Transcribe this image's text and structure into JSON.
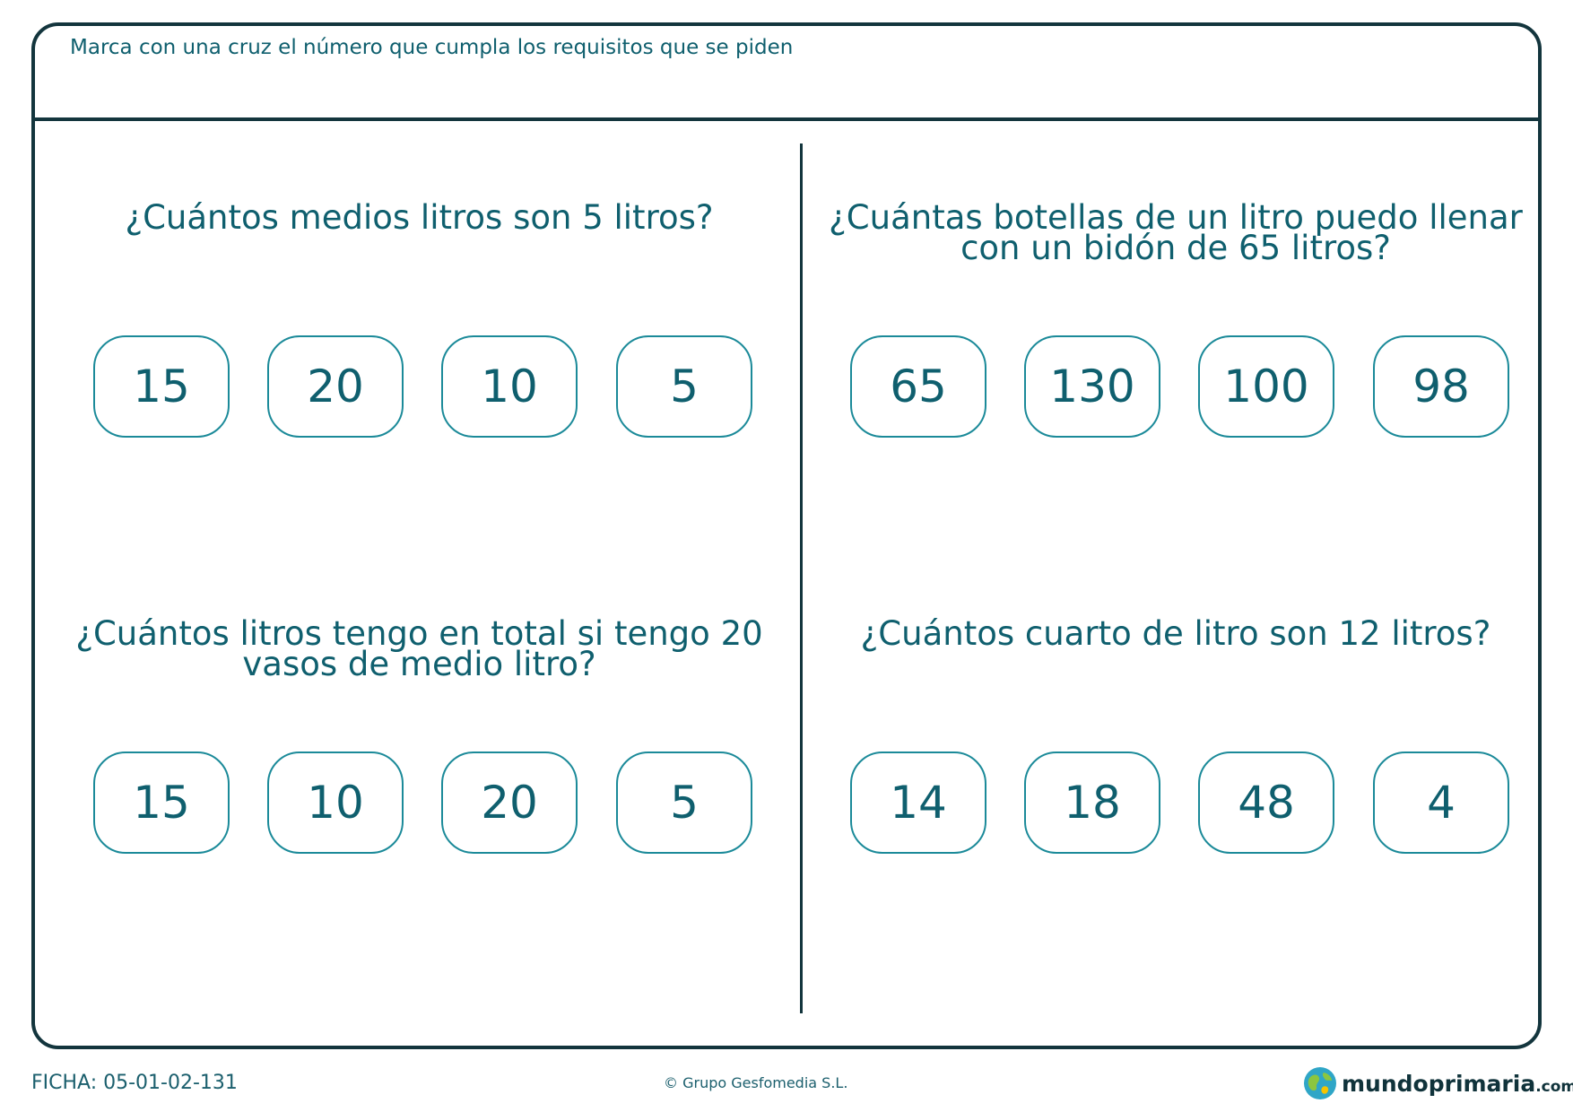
{
  "instruction": "Marca con una cruz el número que cumpla los requisitos que se piden",
  "questions": [
    {
      "lines": [
        "¿Cuántos medios litros son 5 litros?"
      ],
      "options": [
        "15",
        "20",
        "10",
        "5"
      ]
    },
    {
      "lines": [
        "¿Cuántas botellas de un litro puedo llenar",
        "con un bidón de 65 litros?"
      ],
      "options": [
        "65",
        "130",
        "100",
        "98"
      ]
    },
    {
      "lines": [
        "¿Cuántos litros tengo en total si tengo 20",
        "vasos de medio litro?"
      ],
      "options": [
        "15",
        "10",
        "20",
        "5"
      ]
    },
    {
      "lines": [
        "¿Cuántos cuarto de litro son 12 litros?"
      ],
      "options": [
        "14",
        "18",
        "48",
        "4"
      ]
    }
  ],
  "footer": {
    "ficha": "FICHA: 05-01-02-131",
    "copyright": "© Grupo Gesfomedia S.L.",
    "logo_main": "mundoprimaria",
    "logo_domain": ".com"
  },
  "colors": {
    "border": "#13353d",
    "teal": "#0f5f6e",
    "option_border": "#1b8a99"
  },
  "icons": {
    "logo": "globe-icon"
  }
}
